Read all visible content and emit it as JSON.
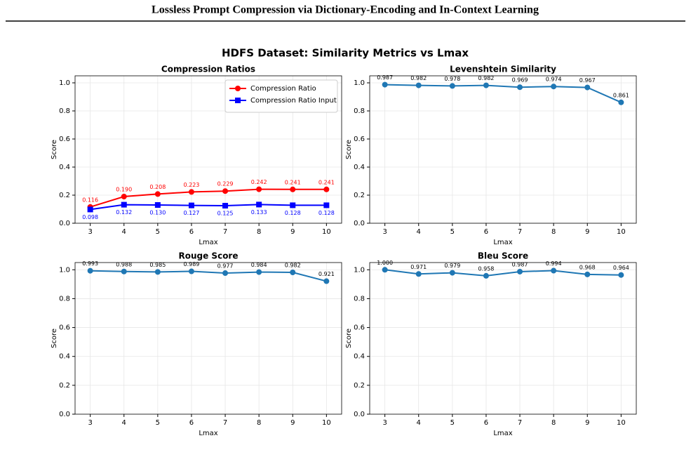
{
  "header": {
    "title": "Lossless Prompt Compression via Dictionary-Encoding and In-Context Learning"
  },
  "figure": {
    "title": "HDFS Dataset: Similarity Metrics vs Lmax"
  },
  "chart_data": [
    {
      "type": "line",
      "title": "Compression Ratios",
      "x_label": "Lmax",
      "y_label": "Score",
      "x": [
        3,
        4,
        5,
        6,
        7,
        8,
        9,
        10
      ],
      "xlim": [
        2.55,
        10.45
      ],
      "xticks": [
        3,
        4,
        5,
        6,
        7,
        8,
        9,
        10
      ],
      "ylim": [
        0,
        1.05
      ],
      "yticks": [
        {
          "value": 0,
          "label": "0.0"
        },
        {
          "value": 0.2,
          "label": "0.2"
        },
        {
          "value": 0.4,
          "label": "0.4"
        },
        {
          "value": 0.6,
          "label": "0.6"
        },
        {
          "value": 0.8,
          "label": "0.8"
        },
        {
          "value": 1,
          "label": "1.0"
        }
      ],
      "grid": true,
      "legend": "upper right",
      "series": [
        {
          "name": "Compression Ratio",
          "color": "#ff0000",
          "marker": "circle",
          "label_position": "above",
          "values": [
            0.116,
            0.19,
            0.208,
            0.223,
            0.229,
            0.242,
            0.241,
            0.241
          ],
          "value_labels": [
            "0.116",
            "0.190",
            "0.208",
            "0.223",
            "0.229",
            "0.242",
            "0.241",
            "0.241"
          ]
        },
        {
          "name": "Compression Ratio Input",
          "color": "#0000ff",
          "marker": "square",
          "label_position": "below",
          "values": [
            0.098,
            0.132,
            0.13,
            0.127,
            0.125,
            0.133,
            0.128,
            0.128
          ],
          "value_labels": [
            "0.098",
            "0.132",
            "0.130",
            "0.127",
            "0.125",
            "0.133",
            "0.128",
            "0.128"
          ]
        }
      ]
    },
    {
      "type": "line",
      "title": "Levenshtein Similarity",
      "x_label": "Lmax",
      "y_label": "Score",
      "x": [
        3,
        4,
        5,
        6,
        7,
        8,
        9,
        10
      ],
      "xlim": [
        2.55,
        10.45
      ],
      "xticks": [
        3,
        4,
        5,
        6,
        7,
        8,
        9,
        10
      ],
      "ylim": [
        0,
        1.05
      ],
      "yticks": [
        {
          "value": 0,
          "label": "0.0"
        },
        {
          "value": 0.2,
          "label": "0.2"
        },
        {
          "value": 0.4,
          "label": "0.4"
        },
        {
          "value": 0.6,
          "label": "0.6"
        },
        {
          "value": 0.8,
          "label": "0.8"
        },
        {
          "value": 1,
          "label": "1.0"
        }
      ],
      "grid": true,
      "series": [
        {
          "color": "#1f77b4",
          "marker": "circle",
          "label_position": "above",
          "values": [
            0.987,
            0.982,
            0.978,
            0.982,
            0.969,
            0.974,
            0.967,
            0.861
          ],
          "value_labels": [
            "0.987",
            "0.982",
            "0.978",
            "0.982",
            "0.969",
            "0.974",
            "0.967",
            "0.861"
          ]
        }
      ]
    },
    {
      "type": "line",
      "title": "Rouge Score",
      "x_label": "Lmax",
      "y_label": "Score",
      "x": [
        3,
        4,
        5,
        6,
        7,
        8,
        9,
        10
      ],
      "xlim": [
        2.55,
        10.45
      ],
      "xticks": [
        3,
        4,
        5,
        6,
        7,
        8,
        9,
        10
      ],
      "ylim": [
        0,
        1.05
      ],
      "yticks": [
        {
          "value": 0,
          "label": "0.0"
        },
        {
          "value": 0.2,
          "label": "0.2"
        },
        {
          "value": 0.4,
          "label": "0.4"
        },
        {
          "value": 0.6,
          "label": "0.6"
        },
        {
          "value": 0.8,
          "label": "0.8"
        },
        {
          "value": 1,
          "label": "1.0"
        }
      ],
      "grid": true,
      "series": [
        {
          "color": "#1f77b4",
          "marker": "circle",
          "label_position": "above",
          "values": [
            0.993,
            0.988,
            0.985,
            0.989,
            0.977,
            0.984,
            0.982,
            0.921
          ],
          "value_labels": [
            "0.993",
            "0.988",
            "0.985",
            "0.989",
            "0.977",
            "0.984",
            "0.982",
            "0.921"
          ]
        }
      ]
    },
    {
      "type": "line",
      "title": "Bleu Score",
      "x_label": "Lmax",
      "y_label": "Score",
      "x": [
        3,
        4,
        5,
        6,
        7,
        8,
        9,
        10
      ],
      "xlim": [
        2.55,
        10.45
      ],
      "xticks": [
        3,
        4,
        5,
        6,
        7,
        8,
        9,
        10
      ],
      "ylim": [
        0,
        1.05
      ],
      "yticks": [
        {
          "value": 0,
          "label": "0.0"
        },
        {
          "value": 0.2,
          "label": "0.2"
        },
        {
          "value": 0.4,
          "label": "0.4"
        },
        {
          "value": 0.6,
          "label": "0.6"
        },
        {
          "value": 0.8,
          "label": "0.8"
        },
        {
          "value": 1,
          "label": "1.0"
        }
      ],
      "grid": true,
      "series": [
        {
          "color": "#1f77b4",
          "marker": "circle",
          "label_position": "above",
          "values": [
            1,
            0.971,
            0.979,
            0.958,
            0.987,
            0.994,
            0.968,
            0.964
          ],
          "value_labels": [
            "1.000",
            "0.971",
            "0.979",
            "0.958",
            "0.987",
            "0.994",
            "0.968",
            "0.964"
          ]
        }
      ]
    }
  ]
}
